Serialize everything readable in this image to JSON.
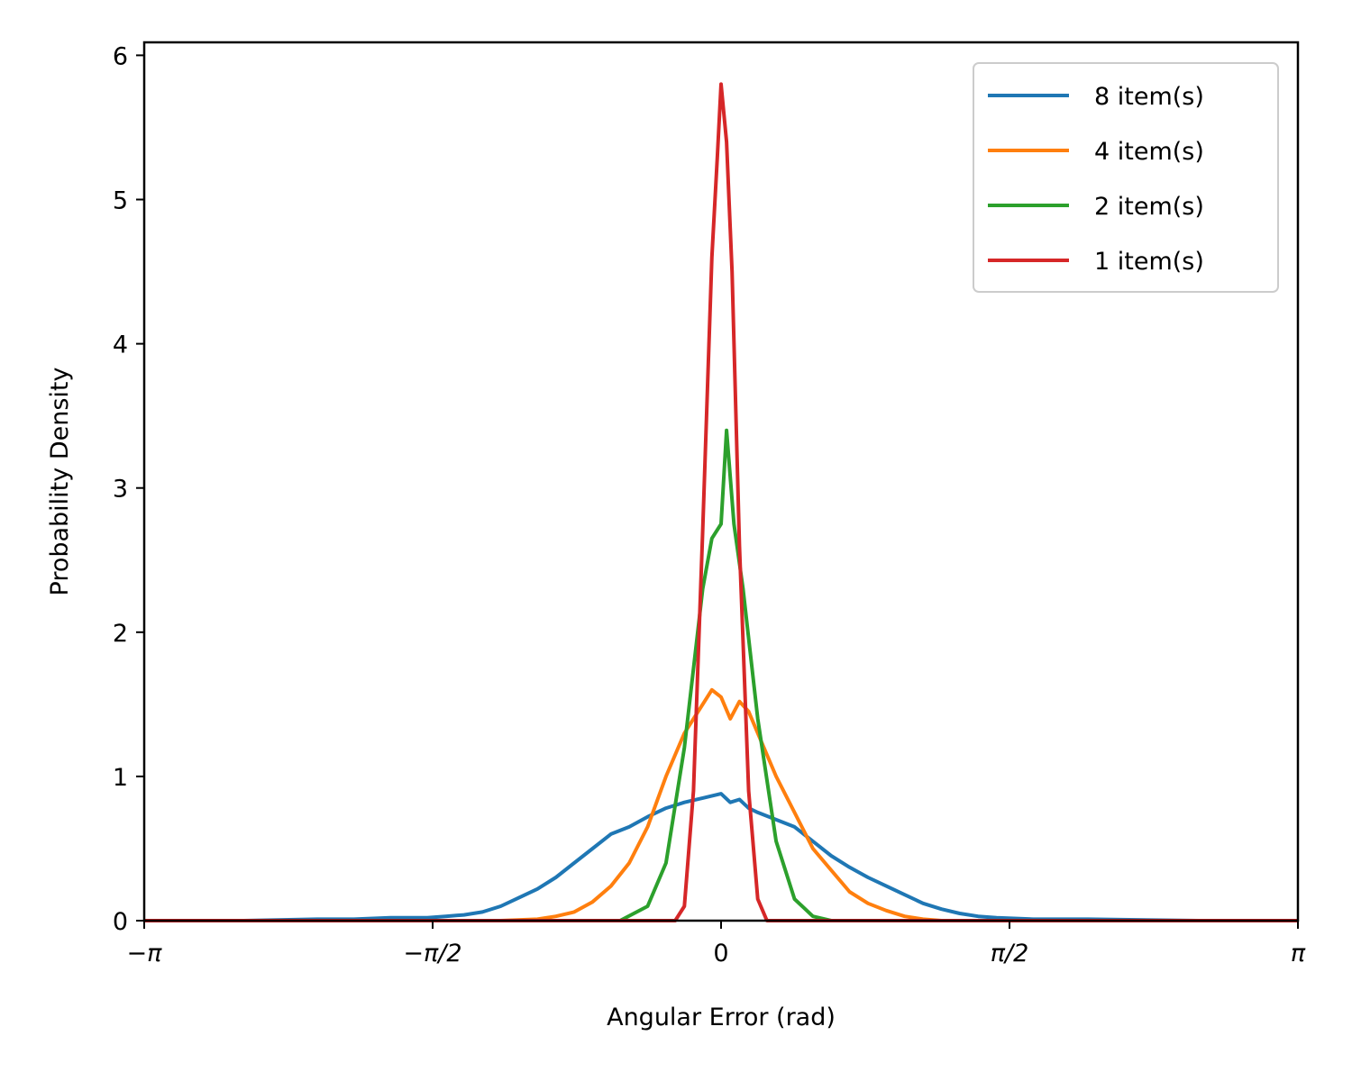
{
  "chart_data": {
    "type": "line",
    "title": "",
    "xlabel": "Angular Error (rad)",
    "ylabel": "Probability Density",
    "xlim": [
      -3.14159,
      3.14159
    ],
    "ylim": [
      0,
      6.09
    ],
    "x_ticks": [
      {
        "value": -3.14159,
        "label": "−π"
      },
      {
        "value": -1.5708,
        "label": "−π/2"
      },
      {
        "value": 0,
        "label": "0"
      },
      {
        "value": 1.5708,
        "label": "π/2"
      },
      {
        "value": 3.14159,
        "label": "π"
      }
    ],
    "y_ticks": [
      {
        "value": 0,
        "label": "0"
      },
      {
        "value": 1,
        "label": "1"
      },
      {
        "value": 2,
        "label": "2"
      },
      {
        "value": 3,
        "label": "3"
      },
      {
        "value": 4,
        "label": "4"
      },
      {
        "value": 5,
        "label": "5"
      },
      {
        "value": 6,
        "label": "6"
      }
    ],
    "grid": false,
    "legend_position": "top-right",
    "series": [
      {
        "name": "8 item(s)",
        "color": "#1f77b4",
        "points": [
          [
            -3.14,
            0.0
          ],
          [
            -2.6,
            0.0
          ],
          [
            -2.2,
            0.01
          ],
          [
            -2.0,
            0.01
          ],
          [
            -1.8,
            0.02
          ],
          [
            -1.6,
            0.02
          ],
          [
            -1.5,
            0.03
          ],
          [
            -1.4,
            0.04
          ],
          [
            -1.3,
            0.06
          ],
          [
            -1.2,
            0.1
          ],
          [
            -1.1,
            0.16
          ],
          [
            -1.0,
            0.22
          ],
          [
            -0.9,
            0.3
          ],
          [
            -0.8,
            0.4
          ],
          [
            -0.7,
            0.5
          ],
          [
            -0.6,
            0.6
          ],
          [
            -0.5,
            0.65
          ],
          [
            -0.4,
            0.72
          ],
          [
            -0.3,
            0.78
          ],
          [
            -0.2,
            0.82
          ],
          [
            -0.1,
            0.85
          ],
          [
            0.0,
            0.88
          ],
          [
            0.05,
            0.82
          ],
          [
            0.1,
            0.84
          ],
          [
            0.15,
            0.78
          ],
          [
            0.2,
            0.75
          ],
          [
            0.3,
            0.7
          ],
          [
            0.4,
            0.65
          ],
          [
            0.5,
            0.55
          ],
          [
            0.6,
            0.45
          ],
          [
            0.7,
            0.37
          ],
          [
            0.8,
            0.3
          ],
          [
            0.9,
            0.24
          ],
          [
            1.0,
            0.18
          ],
          [
            1.1,
            0.12
          ],
          [
            1.2,
            0.08
          ],
          [
            1.3,
            0.05
          ],
          [
            1.4,
            0.03
          ],
          [
            1.5,
            0.02
          ],
          [
            1.7,
            0.01
          ],
          [
            2.0,
            0.01
          ],
          [
            2.6,
            0.0
          ],
          [
            3.14,
            0.0
          ]
        ]
      },
      {
        "name": "4 item(s)",
        "color": "#ff7f0e",
        "points": [
          [
            -3.14,
            0.0
          ],
          [
            -1.2,
            0.0
          ],
          [
            -1.0,
            0.01
          ],
          [
            -0.9,
            0.03
          ],
          [
            -0.8,
            0.06
          ],
          [
            -0.7,
            0.13
          ],
          [
            -0.6,
            0.24
          ],
          [
            -0.5,
            0.4
          ],
          [
            -0.4,
            0.65
          ],
          [
            -0.3,
            1.0
          ],
          [
            -0.2,
            1.3
          ],
          [
            -0.1,
            1.5
          ],
          [
            -0.05,
            1.6
          ],
          [
            0.0,
            1.55
          ],
          [
            0.05,
            1.4
          ],
          [
            0.1,
            1.52
          ],
          [
            0.15,
            1.45
          ],
          [
            0.2,
            1.3
          ],
          [
            0.3,
            1.0
          ],
          [
            0.4,
            0.75
          ],
          [
            0.5,
            0.5
          ],
          [
            0.6,
            0.35
          ],
          [
            0.7,
            0.2
          ],
          [
            0.8,
            0.12
          ],
          [
            0.9,
            0.07
          ],
          [
            1.0,
            0.03
          ],
          [
            1.1,
            0.01
          ],
          [
            1.2,
            0.0
          ],
          [
            3.14,
            0.0
          ]
        ]
      },
      {
        "name": "2 item(s)",
        "color": "#2ca02c",
        "points": [
          [
            -3.14,
            0.0
          ],
          [
            -0.55,
            0.0
          ],
          [
            -0.4,
            0.1
          ],
          [
            -0.3,
            0.4
          ],
          [
            -0.2,
            1.2
          ],
          [
            -0.1,
            2.3
          ],
          [
            -0.05,
            2.65
          ],
          [
            0.0,
            2.75
          ],
          [
            0.03,
            3.4
          ],
          [
            0.07,
            2.75
          ],
          [
            0.12,
            2.3
          ],
          [
            0.2,
            1.4
          ],
          [
            0.3,
            0.55
          ],
          [
            0.4,
            0.15
          ],
          [
            0.5,
            0.03
          ],
          [
            0.6,
            0.0
          ],
          [
            3.14,
            0.0
          ]
        ]
      },
      {
        "name": "1 item(s)",
        "color": "#d62728",
        "points": [
          [
            -3.14,
            0.0
          ],
          [
            -0.25,
            0.0
          ],
          [
            -0.2,
            0.1
          ],
          [
            -0.15,
            0.9
          ],
          [
            -0.1,
            2.7
          ],
          [
            -0.05,
            4.6
          ],
          [
            -0.02,
            5.3
          ],
          [
            0.0,
            5.8
          ],
          [
            0.03,
            5.4
          ],
          [
            0.06,
            4.5
          ],
          [
            0.1,
            2.6
          ],
          [
            0.15,
            0.9
          ],
          [
            0.2,
            0.15
          ],
          [
            0.25,
            0.0
          ],
          [
            3.14,
            0.0
          ]
        ]
      }
    ]
  }
}
